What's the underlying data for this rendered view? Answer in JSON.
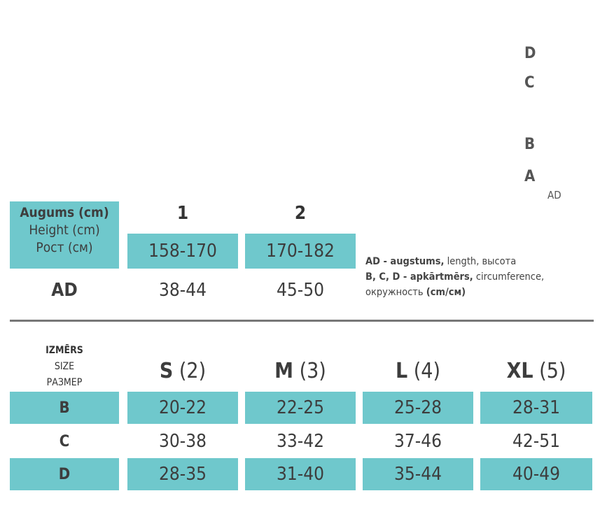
{
  "colors": {
    "accent": "#6fc8cc",
    "text": "#3d3d3d"
  },
  "diagram": {
    "letters": [
      "D",
      "C",
      "B",
      "A"
    ],
    "bracket_label": "AD"
  },
  "height_table": {
    "header": {
      "lv": "Augums (cm)",
      "en": "Height (cm)",
      "ru": "Рост (см)"
    },
    "columns": [
      "1",
      "2"
    ],
    "heights": [
      "158-170",
      "170-182"
    ],
    "ad_label": "AD",
    "ad_values": [
      "38-44",
      "45-50"
    ]
  },
  "legend": {
    "line1_bold": "AD - augstums,",
    "line1_rest": " length, высота",
    "line2_bold": "B, C, D - apkārtmērs,",
    "line2_rest": " circumference,",
    "line3_rest": "окружность ",
    "line3_bold": "(cm/см)"
  },
  "size_table": {
    "header": {
      "lv": "IZMĒRS",
      "en": "SIZE",
      "ru": "РАЗМЕР"
    },
    "sizes": [
      {
        "name": "S",
        "num": "(2)"
      },
      {
        "name": "M",
        "num": "(3)"
      },
      {
        "name": "L",
        "num": "(4)"
      },
      {
        "name": "XL",
        "num": "(5)"
      }
    ],
    "rows": [
      {
        "label": "B",
        "values": [
          "20-22",
          "22-25",
          "25-28",
          "28-31"
        ]
      },
      {
        "label": "C",
        "values": [
          "30-38",
          "33-42",
          "37-46",
          "42-51"
        ]
      },
      {
        "label": "D",
        "values": [
          "28-35",
          "31-40",
          "35-44",
          "40-49"
        ]
      }
    ]
  }
}
